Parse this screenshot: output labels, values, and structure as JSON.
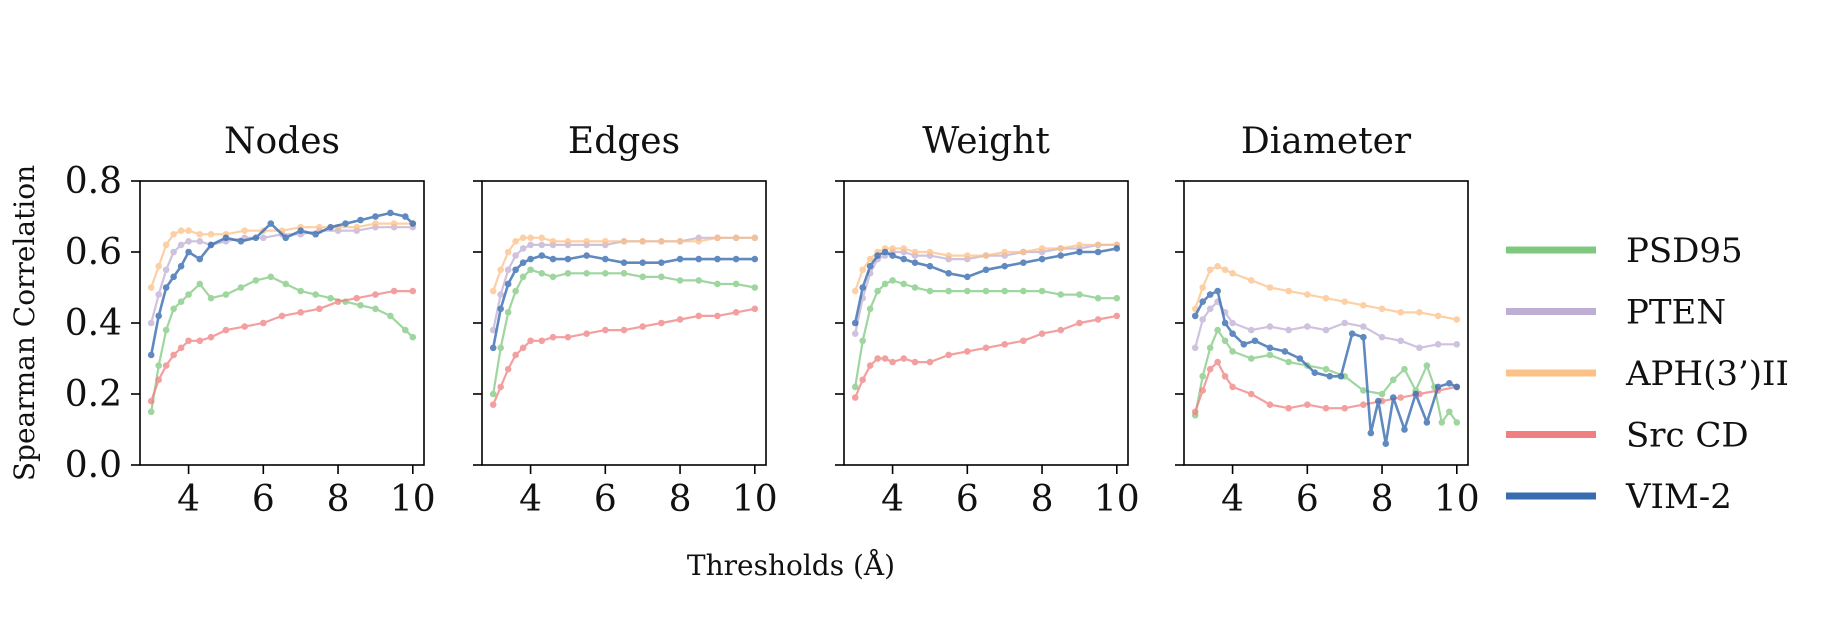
{
  "chart_data": [
    {
      "type": "line",
      "title": "Nodes",
      "xlim": [
        2.7,
        10.3
      ],
      "ylim": [
        0.0,
        0.8
      ],
      "xticks": [
        4,
        6,
        8,
        10
      ],
      "yticks": [
        0.0,
        0.2,
        0.4,
        0.6,
        0.8
      ],
      "ylabel": "Spearman Correlation",
      "series": [
        {
          "name": "PSD95",
          "x": [
            3.0,
            3.2,
            3.4,
            3.6,
            3.8,
            4.0,
            4.3,
            4.6,
            5.0,
            5.4,
            5.8,
            6.2,
            6.6,
            7.0,
            7.4,
            7.8,
            8.2,
            8.6,
            9.0,
            9.4,
            9.8,
            10.0
          ],
          "values": [
            0.15,
            0.28,
            0.38,
            0.44,
            0.46,
            0.48,
            0.51,
            0.47,
            0.48,
            0.5,
            0.52,
            0.53,
            0.51,
            0.49,
            0.48,
            0.47,
            0.46,
            0.45,
            0.44,
            0.42,
            0.38,
            0.36
          ]
        },
        {
          "name": "PTEN",
          "x": [
            3.0,
            3.2,
            3.4,
            3.6,
            3.8,
            4.0,
            4.3,
            4.6,
            5.0,
            5.5,
            6.0,
            6.5,
            7.0,
            7.5,
            8.0,
            8.5,
            9.0,
            9.5,
            10.0
          ],
          "values": [
            0.4,
            0.48,
            0.55,
            0.6,
            0.62,
            0.63,
            0.63,
            0.62,
            0.63,
            0.64,
            0.64,
            0.65,
            0.65,
            0.66,
            0.66,
            0.66,
            0.67,
            0.67,
            0.67
          ]
        },
        {
          "name": "APH(3’)II",
          "x": [
            3.0,
            3.2,
            3.4,
            3.6,
            3.8,
            4.0,
            4.3,
            4.6,
            5.0,
            5.5,
            6.0,
            6.5,
            7.0,
            7.5,
            8.0,
            8.5,
            9.0,
            9.5,
            10.0
          ],
          "values": [
            0.5,
            0.56,
            0.62,
            0.65,
            0.66,
            0.66,
            0.65,
            0.65,
            0.65,
            0.66,
            0.66,
            0.66,
            0.67,
            0.67,
            0.67,
            0.67,
            0.68,
            0.68,
            0.68
          ]
        },
        {
          "name": "Src CD",
          "x": [
            3.0,
            3.2,
            3.4,
            3.6,
            3.8,
            4.0,
            4.3,
            4.6,
            5.0,
            5.5,
            6.0,
            6.5,
            7.0,
            7.5,
            8.0,
            8.5,
            9.0,
            9.5,
            10.0
          ],
          "values": [
            0.18,
            0.24,
            0.28,
            0.31,
            0.33,
            0.35,
            0.35,
            0.36,
            0.38,
            0.39,
            0.4,
            0.42,
            0.43,
            0.44,
            0.46,
            0.47,
            0.48,
            0.49,
            0.49
          ]
        },
        {
          "name": "VIM-2",
          "x": [
            3.0,
            3.2,
            3.4,
            3.6,
            3.8,
            4.0,
            4.3,
            4.6,
            5.0,
            5.4,
            5.8,
            6.2,
            6.6,
            7.0,
            7.4,
            7.8,
            8.2,
            8.6,
            9.0,
            9.4,
            9.8,
            10.0
          ],
          "values": [
            0.31,
            0.42,
            0.5,
            0.53,
            0.56,
            0.6,
            0.58,
            0.62,
            0.64,
            0.63,
            0.64,
            0.68,
            0.64,
            0.66,
            0.65,
            0.67,
            0.68,
            0.69,
            0.7,
            0.71,
            0.7,
            0.68
          ]
        }
      ]
    },
    {
      "type": "line",
      "title": "Edges",
      "xlim": [
        2.7,
        10.3
      ],
      "ylim": [
        0.0,
        0.8
      ],
      "xticks": [
        4,
        6,
        8,
        10
      ],
      "yticks": [
        0.0,
        0.2,
        0.4,
        0.6,
        0.8
      ],
      "series": [
        {
          "name": "PSD95",
          "x": [
            3.0,
            3.2,
            3.4,
            3.6,
            3.8,
            4.0,
            4.3,
            4.6,
            5.0,
            5.5,
            6.0,
            6.5,
            7.0,
            7.5,
            8.0,
            8.5,
            9.0,
            9.5,
            10.0
          ],
          "values": [
            0.2,
            0.33,
            0.43,
            0.49,
            0.53,
            0.55,
            0.54,
            0.53,
            0.54,
            0.54,
            0.54,
            0.54,
            0.53,
            0.53,
            0.52,
            0.52,
            0.51,
            0.51,
            0.5
          ]
        },
        {
          "name": "PTEN",
          "x": [
            3.0,
            3.2,
            3.4,
            3.6,
            3.8,
            4.0,
            4.3,
            4.6,
            5.0,
            5.5,
            6.0,
            6.5,
            7.0,
            7.5,
            8.0,
            8.5,
            9.0,
            9.5,
            10.0
          ],
          "values": [
            0.38,
            0.48,
            0.55,
            0.59,
            0.61,
            0.62,
            0.62,
            0.62,
            0.62,
            0.62,
            0.62,
            0.63,
            0.63,
            0.63,
            0.63,
            0.64,
            0.64,
            0.64,
            0.64
          ]
        },
        {
          "name": "APH(3’)II",
          "x": [
            3.0,
            3.2,
            3.4,
            3.6,
            3.8,
            4.0,
            4.3,
            4.6,
            5.0,
            5.5,
            6.0,
            6.5,
            7.0,
            7.5,
            8.0,
            8.5,
            9.0,
            9.5,
            10.0
          ],
          "values": [
            0.49,
            0.55,
            0.6,
            0.63,
            0.64,
            0.64,
            0.64,
            0.63,
            0.63,
            0.63,
            0.63,
            0.63,
            0.63,
            0.63,
            0.63,
            0.63,
            0.64,
            0.64,
            0.64
          ]
        },
        {
          "name": "Src CD",
          "x": [
            3.0,
            3.2,
            3.4,
            3.6,
            3.8,
            4.0,
            4.3,
            4.6,
            5.0,
            5.5,
            6.0,
            6.5,
            7.0,
            7.5,
            8.0,
            8.5,
            9.0,
            9.5,
            10.0
          ],
          "values": [
            0.17,
            0.22,
            0.27,
            0.31,
            0.33,
            0.35,
            0.35,
            0.36,
            0.36,
            0.37,
            0.38,
            0.38,
            0.39,
            0.4,
            0.41,
            0.42,
            0.42,
            0.43,
            0.44
          ]
        },
        {
          "name": "VIM-2",
          "x": [
            3.0,
            3.2,
            3.4,
            3.6,
            3.8,
            4.0,
            4.3,
            4.6,
            5.0,
            5.5,
            6.0,
            6.5,
            7.0,
            7.5,
            8.0,
            8.5,
            9.0,
            9.5,
            10.0
          ],
          "values": [
            0.33,
            0.44,
            0.51,
            0.55,
            0.57,
            0.58,
            0.59,
            0.58,
            0.58,
            0.59,
            0.58,
            0.57,
            0.57,
            0.57,
            0.58,
            0.58,
            0.58,
            0.58,
            0.58
          ]
        }
      ]
    },
    {
      "type": "line",
      "title": "Weight",
      "xlim": [
        2.7,
        10.3
      ],
      "ylim": [
        0.0,
        0.8
      ],
      "xticks": [
        4,
        6,
        8,
        10
      ],
      "yticks": [
        0.0,
        0.2,
        0.4,
        0.6,
        0.8
      ],
      "series": [
        {
          "name": "PSD95",
          "x": [
            3.0,
            3.2,
            3.4,
            3.6,
            3.8,
            4.0,
            4.3,
            4.6,
            5.0,
            5.5,
            6.0,
            6.5,
            7.0,
            7.5,
            8.0,
            8.5,
            9.0,
            9.5,
            10.0
          ],
          "values": [
            0.22,
            0.35,
            0.44,
            0.49,
            0.51,
            0.52,
            0.51,
            0.5,
            0.49,
            0.49,
            0.49,
            0.49,
            0.49,
            0.49,
            0.49,
            0.48,
            0.48,
            0.47,
            0.47
          ]
        },
        {
          "name": "PTEN",
          "x": [
            3.0,
            3.2,
            3.4,
            3.6,
            3.8,
            4.0,
            4.3,
            4.6,
            5.0,
            5.5,
            6.0,
            6.5,
            7.0,
            7.5,
            8.0,
            8.5,
            9.0,
            9.5,
            10.0
          ],
          "values": [
            0.37,
            0.47,
            0.54,
            0.58,
            0.59,
            0.6,
            0.6,
            0.59,
            0.59,
            0.58,
            0.58,
            0.59,
            0.59,
            0.6,
            0.6,
            0.61,
            0.61,
            0.62,
            0.62
          ]
        },
        {
          "name": "APH(3’)II",
          "x": [
            3.0,
            3.2,
            3.4,
            3.6,
            3.8,
            4.0,
            4.3,
            4.6,
            5.0,
            5.5,
            6.0,
            6.5,
            7.0,
            7.5,
            8.0,
            8.5,
            9.0,
            9.5,
            10.0
          ],
          "values": [
            0.49,
            0.55,
            0.58,
            0.6,
            0.61,
            0.61,
            0.61,
            0.6,
            0.6,
            0.59,
            0.59,
            0.59,
            0.6,
            0.6,
            0.61,
            0.61,
            0.62,
            0.62,
            0.62
          ]
        },
        {
          "name": "Src CD",
          "x": [
            3.0,
            3.2,
            3.4,
            3.6,
            3.8,
            4.0,
            4.3,
            4.6,
            5.0,
            5.5,
            6.0,
            6.5,
            7.0,
            7.5,
            8.0,
            8.5,
            9.0,
            9.5,
            10.0
          ],
          "values": [
            0.19,
            0.24,
            0.28,
            0.3,
            0.3,
            0.29,
            0.3,
            0.29,
            0.29,
            0.31,
            0.32,
            0.33,
            0.34,
            0.35,
            0.37,
            0.38,
            0.4,
            0.41,
            0.42
          ]
        },
        {
          "name": "VIM-2",
          "x": [
            3.0,
            3.2,
            3.4,
            3.6,
            3.8,
            4.0,
            4.3,
            4.6,
            5.0,
            5.5,
            6.0,
            6.5,
            7.0,
            7.5,
            8.0,
            8.5,
            9.0,
            9.5,
            10.0
          ],
          "values": [
            0.4,
            0.5,
            0.56,
            0.59,
            0.6,
            0.59,
            0.58,
            0.57,
            0.56,
            0.54,
            0.53,
            0.55,
            0.56,
            0.57,
            0.58,
            0.59,
            0.6,
            0.6,
            0.61
          ]
        }
      ]
    },
    {
      "type": "line",
      "title": "Diameter",
      "xlim": [
        2.7,
        10.3
      ],
      "ylim": [
        0.0,
        0.8
      ],
      "xticks": [
        4,
        6,
        8,
        10
      ],
      "yticks": [
        0.0,
        0.2,
        0.4,
        0.6,
        0.8
      ],
      "series": [
        {
          "name": "PSD95",
          "x": [
            3.0,
            3.2,
            3.4,
            3.6,
            3.8,
            4.0,
            4.5,
            5.0,
            5.5,
            6.0,
            6.5,
            7.0,
            7.5,
            8.0,
            8.3,
            8.6,
            8.9,
            9.2,
            9.4,
            9.6,
            9.8,
            10.0
          ],
          "values": [
            0.14,
            0.25,
            0.33,
            0.38,
            0.35,
            0.32,
            0.3,
            0.31,
            0.29,
            0.28,
            0.27,
            0.25,
            0.21,
            0.2,
            0.24,
            0.27,
            0.21,
            0.28,
            0.22,
            0.12,
            0.15,
            0.12
          ]
        },
        {
          "name": "PTEN",
          "x": [
            3.0,
            3.2,
            3.4,
            3.6,
            3.8,
            4.0,
            4.5,
            5.0,
            5.5,
            6.0,
            6.5,
            7.0,
            7.5,
            8.0,
            8.5,
            9.0,
            9.5,
            10.0
          ],
          "values": [
            0.33,
            0.41,
            0.44,
            0.46,
            0.43,
            0.4,
            0.38,
            0.39,
            0.38,
            0.39,
            0.38,
            0.4,
            0.39,
            0.36,
            0.35,
            0.33,
            0.34,
            0.34
          ]
        },
        {
          "name": "APH(3’)II",
          "x": [
            3.0,
            3.2,
            3.4,
            3.6,
            3.8,
            4.0,
            4.5,
            5.0,
            5.5,
            6.0,
            6.5,
            7.0,
            7.5,
            8.0,
            8.5,
            9.0,
            9.5,
            10.0
          ],
          "values": [
            0.44,
            0.5,
            0.55,
            0.56,
            0.55,
            0.54,
            0.52,
            0.5,
            0.49,
            0.48,
            0.47,
            0.46,
            0.45,
            0.44,
            0.43,
            0.43,
            0.42,
            0.41
          ]
        },
        {
          "name": "Src CD",
          "x": [
            3.0,
            3.2,
            3.4,
            3.6,
            3.8,
            4.0,
            4.5,
            5.0,
            5.5,
            6.0,
            6.5,
            7.0,
            7.5,
            8.0,
            8.5,
            9.0,
            9.5,
            10.0
          ],
          "values": [
            0.15,
            0.21,
            0.27,
            0.29,
            0.25,
            0.22,
            0.2,
            0.17,
            0.16,
            0.17,
            0.16,
            0.16,
            0.17,
            0.18,
            0.19,
            0.2,
            0.21,
            0.22
          ]
        },
        {
          "name": "VIM-2",
          "x": [
            3.0,
            3.2,
            3.4,
            3.6,
            3.8,
            4.0,
            4.3,
            4.6,
            5.0,
            5.4,
            5.8,
            6.2,
            6.6,
            6.9,
            7.2,
            7.5,
            7.7,
            7.9,
            8.1,
            8.3,
            8.6,
            8.9,
            9.2,
            9.5,
            9.8,
            10.0
          ],
          "values": [
            0.42,
            0.46,
            0.48,
            0.49,
            0.4,
            0.37,
            0.34,
            0.35,
            0.33,
            0.32,
            0.3,
            0.26,
            0.25,
            0.25,
            0.37,
            0.36,
            0.09,
            0.18,
            0.06,
            0.19,
            0.1,
            0.2,
            0.12,
            0.22,
            0.23,
            0.22
          ]
        }
      ]
    }
  ],
  "x_axis_label": "Thresholds (Å)",
  "legend": [
    {
      "name": "PSD95",
      "color": "#7fc97f"
    },
    {
      "name": "PTEN",
      "color": "#beaed4"
    },
    {
      "name": "APH(3’)II",
      "color": "#fdc086"
    },
    {
      "name": "Src CD",
      "color": "#f08080"
    },
    {
      "name": "VIM-2",
      "color": "#386cb0"
    }
  ],
  "legend_position": "right",
  "grid": false
}
